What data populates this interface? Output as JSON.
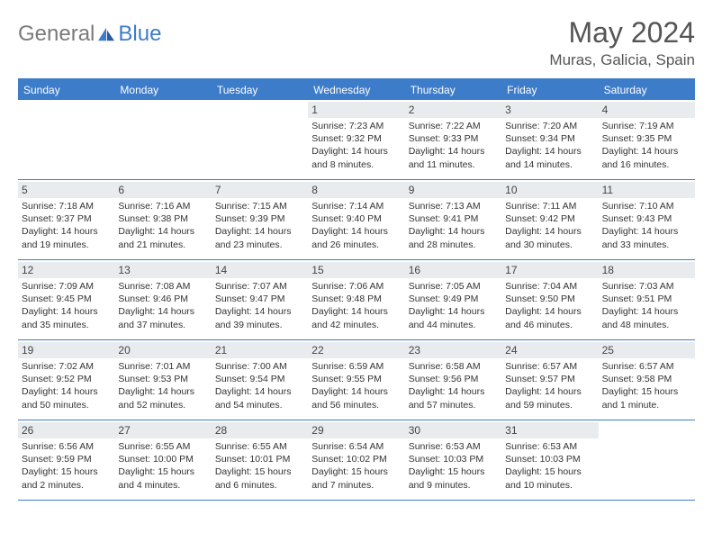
{
  "brand": {
    "part1": "General",
    "part2": "Blue"
  },
  "title": "May 2024",
  "location": "Muras, Galicia, Spain",
  "colors": {
    "accent": "#3d7cc9",
    "header_gray": "#e9ecef",
    "text": "#333333",
    "logo_gray": "#7a7a7a",
    "background": "#ffffff"
  },
  "weekdays": [
    "Sunday",
    "Monday",
    "Tuesday",
    "Wednesday",
    "Thursday",
    "Friday",
    "Saturday"
  ],
  "weeks": [
    [
      {
        "n": "",
        "sunrise": "",
        "sunset": "",
        "daylight1": "",
        "daylight2": ""
      },
      {
        "n": "",
        "sunrise": "",
        "sunset": "",
        "daylight1": "",
        "daylight2": ""
      },
      {
        "n": "",
        "sunrise": "",
        "sunset": "",
        "daylight1": "",
        "daylight2": ""
      },
      {
        "n": "1",
        "sunrise": "Sunrise: 7:23 AM",
        "sunset": "Sunset: 9:32 PM",
        "daylight1": "Daylight: 14 hours",
        "daylight2": "and 8 minutes."
      },
      {
        "n": "2",
        "sunrise": "Sunrise: 7:22 AM",
        "sunset": "Sunset: 9:33 PM",
        "daylight1": "Daylight: 14 hours",
        "daylight2": "and 11 minutes."
      },
      {
        "n": "3",
        "sunrise": "Sunrise: 7:20 AM",
        "sunset": "Sunset: 9:34 PM",
        "daylight1": "Daylight: 14 hours",
        "daylight2": "and 14 minutes."
      },
      {
        "n": "4",
        "sunrise": "Sunrise: 7:19 AM",
        "sunset": "Sunset: 9:35 PM",
        "daylight1": "Daylight: 14 hours",
        "daylight2": "and 16 minutes."
      }
    ],
    [
      {
        "n": "5",
        "sunrise": "Sunrise: 7:18 AM",
        "sunset": "Sunset: 9:37 PM",
        "daylight1": "Daylight: 14 hours",
        "daylight2": "and 19 minutes."
      },
      {
        "n": "6",
        "sunrise": "Sunrise: 7:16 AM",
        "sunset": "Sunset: 9:38 PM",
        "daylight1": "Daylight: 14 hours",
        "daylight2": "and 21 minutes."
      },
      {
        "n": "7",
        "sunrise": "Sunrise: 7:15 AM",
        "sunset": "Sunset: 9:39 PM",
        "daylight1": "Daylight: 14 hours",
        "daylight2": "and 23 minutes."
      },
      {
        "n": "8",
        "sunrise": "Sunrise: 7:14 AM",
        "sunset": "Sunset: 9:40 PM",
        "daylight1": "Daylight: 14 hours",
        "daylight2": "and 26 minutes."
      },
      {
        "n": "9",
        "sunrise": "Sunrise: 7:13 AM",
        "sunset": "Sunset: 9:41 PM",
        "daylight1": "Daylight: 14 hours",
        "daylight2": "and 28 minutes."
      },
      {
        "n": "10",
        "sunrise": "Sunrise: 7:11 AM",
        "sunset": "Sunset: 9:42 PM",
        "daylight1": "Daylight: 14 hours",
        "daylight2": "and 30 minutes."
      },
      {
        "n": "11",
        "sunrise": "Sunrise: 7:10 AM",
        "sunset": "Sunset: 9:43 PM",
        "daylight1": "Daylight: 14 hours",
        "daylight2": "and 33 minutes."
      }
    ],
    [
      {
        "n": "12",
        "sunrise": "Sunrise: 7:09 AM",
        "sunset": "Sunset: 9:45 PM",
        "daylight1": "Daylight: 14 hours",
        "daylight2": "and 35 minutes."
      },
      {
        "n": "13",
        "sunrise": "Sunrise: 7:08 AM",
        "sunset": "Sunset: 9:46 PM",
        "daylight1": "Daylight: 14 hours",
        "daylight2": "and 37 minutes."
      },
      {
        "n": "14",
        "sunrise": "Sunrise: 7:07 AM",
        "sunset": "Sunset: 9:47 PM",
        "daylight1": "Daylight: 14 hours",
        "daylight2": "and 39 minutes."
      },
      {
        "n": "15",
        "sunrise": "Sunrise: 7:06 AM",
        "sunset": "Sunset: 9:48 PM",
        "daylight1": "Daylight: 14 hours",
        "daylight2": "and 42 minutes."
      },
      {
        "n": "16",
        "sunrise": "Sunrise: 7:05 AM",
        "sunset": "Sunset: 9:49 PM",
        "daylight1": "Daylight: 14 hours",
        "daylight2": "and 44 minutes."
      },
      {
        "n": "17",
        "sunrise": "Sunrise: 7:04 AM",
        "sunset": "Sunset: 9:50 PM",
        "daylight1": "Daylight: 14 hours",
        "daylight2": "and 46 minutes."
      },
      {
        "n": "18",
        "sunrise": "Sunrise: 7:03 AM",
        "sunset": "Sunset: 9:51 PM",
        "daylight1": "Daylight: 14 hours",
        "daylight2": "and 48 minutes."
      }
    ],
    [
      {
        "n": "19",
        "sunrise": "Sunrise: 7:02 AM",
        "sunset": "Sunset: 9:52 PM",
        "daylight1": "Daylight: 14 hours",
        "daylight2": "and 50 minutes."
      },
      {
        "n": "20",
        "sunrise": "Sunrise: 7:01 AM",
        "sunset": "Sunset: 9:53 PM",
        "daylight1": "Daylight: 14 hours",
        "daylight2": "and 52 minutes."
      },
      {
        "n": "21",
        "sunrise": "Sunrise: 7:00 AM",
        "sunset": "Sunset: 9:54 PM",
        "daylight1": "Daylight: 14 hours",
        "daylight2": "and 54 minutes."
      },
      {
        "n": "22",
        "sunrise": "Sunrise: 6:59 AM",
        "sunset": "Sunset: 9:55 PM",
        "daylight1": "Daylight: 14 hours",
        "daylight2": "and 56 minutes."
      },
      {
        "n": "23",
        "sunrise": "Sunrise: 6:58 AM",
        "sunset": "Sunset: 9:56 PM",
        "daylight1": "Daylight: 14 hours",
        "daylight2": "and 57 minutes."
      },
      {
        "n": "24",
        "sunrise": "Sunrise: 6:57 AM",
        "sunset": "Sunset: 9:57 PM",
        "daylight1": "Daylight: 14 hours",
        "daylight2": "and 59 minutes."
      },
      {
        "n": "25",
        "sunrise": "Sunrise: 6:57 AM",
        "sunset": "Sunset: 9:58 PM",
        "daylight1": "Daylight: 15 hours",
        "daylight2": "and 1 minute."
      }
    ],
    [
      {
        "n": "26",
        "sunrise": "Sunrise: 6:56 AM",
        "sunset": "Sunset: 9:59 PM",
        "daylight1": "Daylight: 15 hours",
        "daylight2": "and 2 minutes."
      },
      {
        "n": "27",
        "sunrise": "Sunrise: 6:55 AM",
        "sunset": "Sunset: 10:00 PM",
        "daylight1": "Daylight: 15 hours",
        "daylight2": "and 4 minutes."
      },
      {
        "n": "28",
        "sunrise": "Sunrise: 6:55 AM",
        "sunset": "Sunset: 10:01 PM",
        "daylight1": "Daylight: 15 hours",
        "daylight2": "and 6 minutes."
      },
      {
        "n": "29",
        "sunrise": "Sunrise: 6:54 AM",
        "sunset": "Sunset: 10:02 PM",
        "daylight1": "Daylight: 15 hours",
        "daylight2": "and 7 minutes."
      },
      {
        "n": "30",
        "sunrise": "Sunrise: 6:53 AM",
        "sunset": "Sunset: 10:03 PM",
        "daylight1": "Daylight: 15 hours",
        "daylight2": "and 9 minutes."
      },
      {
        "n": "31",
        "sunrise": "Sunrise: 6:53 AM",
        "sunset": "Sunset: 10:03 PM",
        "daylight1": "Daylight: 15 hours",
        "daylight2": "and 10 minutes."
      },
      {
        "n": "",
        "sunrise": "",
        "sunset": "",
        "daylight1": "",
        "daylight2": ""
      }
    ]
  ]
}
